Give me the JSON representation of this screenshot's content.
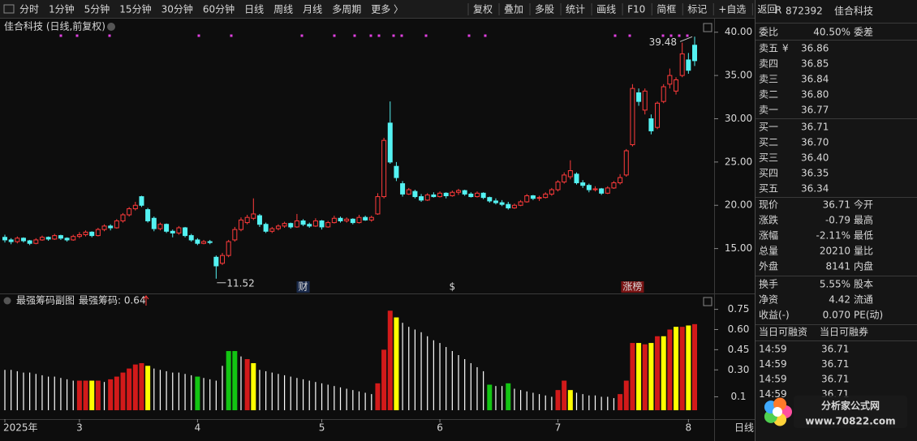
{
  "toolbar": {
    "left": [
      "分时",
      "1分钟",
      "5分钟",
      "15分钟",
      "30分钟",
      "60分钟",
      "日线",
      "周线",
      "月线",
      "多周期",
      "更多 〉"
    ],
    "active": "日线",
    "active_color": "#3fc6ff",
    "right": [
      "复权",
      "叠加",
      "多股",
      "统计",
      "画线",
      "F10",
      "简框",
      "标记",
      "+自选",
      "返回"
    ]
  },
  "chart_data": [
    {
      "type": "candlestick",
      "title": "佳合科技 (日线,前复权)",
      "categories": [
        "2025年",
        null,
        null,
        null,
        null,
        null,
        null,
        null,
        null,
        null,
        null,
        null,
        "3",
        null,
        null,
        null,
        null,
        null,
        null,
        null,
        null,
        null,
        null,
        null,
        null,
        null,
        null,
        null,
        null,
        null,
        null,
        "4",
        null,
        null,
        null,
        null,
        null,
        null,
        null,
        null,
        null,
        null,
        null,
        null,
        null,
        null,
        null,
        null,
        null,
        null,
        null,
        "5",
        null,
        null,
        null,
        null,
        null,
        null,
        null,
        null,
        null,
        null,
        null,
        null,
        null,
        null,
        null,
        null,
        null,
        null,
        "6",
        null,
        null,
        null,
        null,
        null,
        null,
        null,
        null,
        null,
        null,
        null,
        null,
        null,
        null,
        null,
        null,
        null,
        null,
        "7",
        null,
        null,
        null,
        null,
        null,
        null,
        null,
        null,
        null,
        null,
        null,
        null,
        null,
        null,
        null,
        null,
        null,
        null,
        null,
        null,
        "8",
        null
      ],
      "open": [
        16.3,
        16.0,
        15.8,
        16.2,
        15.9,
        15.6,
        16.0,
        16.3,
        16.1,
        16.5,
        16.2,
        16.0,
        16.4,
        16.6,
        16.9,
        16.5,
        17.2,
        17.6,
        17.4,
        18.2,
        18.9,
        19.6,
        21.0,
        19.5,
        18.5,
        17.3,
        17.8,
        17.0,
        16.8,
        17.4,
        16.5,
        16.0,
        15.6,
        15.8,
        14.0,
        13.3,
        14.2,
        16.0,
        17.2,
        18.0,
        18.5,
        18.8,
        17.8,
        17.0,
        17.3,
        17.6,
        17.9,
        17.5,
        18.2,
        17.8,
        17.6,
        18.2,
        17.5,
        18.0,
        18.5,
        18.2,
        18.4,
        18.0,
        18.6,
        18.3,
        19.0,
        21.0,
        29.5,
        24.5,
        22.5,
        21.3,
        21.6,
        21.0,
        20.6,
        21.2,
        21.0,
        21.4,
        21.1,
        21.5,
        21.7,
        21.3,
        21.0,
        21.4,
        20.9,
        20.5,
        20.3,
        20.1,
        19.7,
        20.0,
        20.4,
        21.1,
        20.8,
        20.9,
        21.3,
        21.8,
        22.7,
        23.3,
        23.6,
        22.6,
        22.3,
        21.8,
        21.9,
        21.4,
        22.0,
        22.6,
        23.5,
        27.0,
        33.0,
        31.0,
        30.0,
        29.0,
        32.0,
        34.0,
        33.2,
        35.0,
        36.8,
        38.5
      ],
      "high": [
        16.6,
        16.2,
        16.4,
        16.3,
        16.0,
        16.2,
        16.5,
        16.4,
        16.7,
        16.6,
        16.3,
        16.6,
        16.9,
        17.1,
        17.0,
        17.4,
        17.8,
        17.8,
        18.4,
        19.1,
        19.8,
        20.4,
        21.1,
        19.7,
        18.7,
        18.0,
        17.9,
        17.2,
        17.6,
        17.5,
        16.7,
        16.2,
        16.0,
        16.0,
        14.2,
        14.5,
        16.0,
        17.5,
        18.6,
        18.9,
        20.8,
        19.0,
        18.0,
        17.5,
        17.8,
        18.1,
        18.0,
        19.0,
        18.4,
        18.0,
        18.5,
        18.3,
        18.2,
        18.8,
        18.7,
        18.6,
        18.5,
        18.9,
        18.8,
        18.8,
        21.4,
        27.8,
        32.0,
        25.0,
        22.8,
        22.0,
        21.8,
        21.3,
        21.4,
        21.5,
        21.6,
        21.5,
        21.7,
        21.9,
        21.8,
        21.5,
        21.6,
        21.5,
        21.0,
        20.8,
        20.6,
        20.4,
        20.2,
        20.6,
        21.3,
        21.2,
        21.1,
        21.5,
        22.0,
        22.9,
        23.8,
        25.2,
        23.8,
        22.9,
        22.5,
        22.2,
        22.0,
        22.2,
        22.8,
        23.6,
        26.5,
        34.0,
        33.5,
        33.5,
        30.5,
        32.0,
        34.0,
        35.8,
        34.8,
        38.8,
        37.6,
        39.48
      ],
      "low": [
        15.7,
        15.5,
        15.6,
        15.7,
        15.4,
        15.5,
        15.9,
        15.9,
        16.0,
        16.0,
        15.8,
        15.9,
        16.2,
        16.4,
        16.3,
        16.4,
        17.0,
        17.1,
        17.3,
        18.0,
        18.7,
        19.4,
        19.8,
        18.0,
        17.0,
        17.1,
        16.8,
        16.3,
        16.6,
        16.3,
        15.8,
        15.4,
        15.5,
        15.5,
        11.52,
        13.1,
        14.0,
        15.8,
        17.0,
        17.8,
        18.3,
        17.5,
        16.8,
        16.8,
        17.1,
        17.4,
        17.3,
        17.4,
        17.6,
        17.4,
        17.5,
        17.2,
        17.4,
        17.9,
        18.0,
        18.0,
        17.8,
        17.9,
        18.2,
        18.1,
        18.9,
        20.8,
        24.8,
        22.8,
        21.0,
        21.2,
        20.8,
        20.4,
        20.5,
        20.9,
        20.9,
        20.8,
        21.0,
        21.2,
        21.1,
        20.9,
        20.9,
        20.7,
        20.3,
        20.1,
        19.9,
        19.5,
        19.6,
        19.9,
        20.3,
        20.6,
        20.5,
        20.8,
        21.1,
        21.6,
        22.5,
        23.0,
        22.4,
        22.0,
        21.5,
        21.6,
        21.2,
        21.3,
        21.9,
        22.4,
        23.3,
        26.8,
        31.5,
        30.5,
        28.2,
        28.8,
        31.8,
        33.5,
        32.8,
        34.8,
        35.2,
        36.1
      ],
      "close": [
        16.0,
        15.8,
        16.2,
        15.9,
        15.6,
        16.0,
        16.3,
        16.1,
        16.5,
        16.2,
        16.0,
        16.4,
        16.6,
        16.9,
        16.5,
        17.2,
        17.6,
        17.4,
        18.2,
        18.9,
        19.6,
        20.0,
        20.0,
        18.2,
        17.3,
        17.8,
        17.0,
        16.8,
        17.4,
        16.5,
        16.0,
        15.6,
        15.8,
        15.7,
        13.0,
        14.2,
        15.8,
        17.2,
        18.3,
        18.6,
        19.0,
        17.8,
        17.0,
        17.3,
        17.6,
        17.9,
        17.5,
        18.2,
        17.8,
        17.6,
        18.2,
        17.5,
        18.0,
        18.5,
        18.2,
        18.4,
        18.0,
        18.6,
        18.3,
        18.6,
        21.0,
        27.5,
        25.0,
        23.2,
        21.3,
        21.8,
        21.0,
        20.6,
        21.2,
        21.0,
        21.4,
        21.1,
        21.5,
        21.7,
        21.3,
        21.0,
        21.4,
        20.9,
        20.5,
        20.3,
        20.1,
        19.7,
        20.0,
        20.4,
        21.1,
        20.8,
        20.9,
        21.3,
        21.8,
        22.7,
        23.5,
        24.0,
        22.6,
        22.3,
        21.8,
        21.9,
        21.4,
        22.0,
        22.6,
        23.2,
        26.3,
        33.5,
        32.0,
        33.2,
        28.6,
        31.8,
        33.7,
        35.0,
        34.5,
        37.5,
        35.6,
        36.71
      ],
      "up_color": "#ff3b3b",
      "down_color": "#54f2f2",
      "ylim": [
        10,
        41.1
      ],
      "yticks": [
        {
          "value": 15,
          "label": "15.00"
        },
        {
          "value": 20,
          "label": "20.00"
        },
        {
          "value": 25,
          "label": "25.00"
        },
        {
          "value": 30,
          "label": "30.00"
        },
        {
          "value": 35,
          "label": "35.00"
        },
        {
          "value": 40,
          "label": "40.00"
        }
      ],
      "annotations": [
        {
          "text": "39.48"
        },
        {
          "text": "11.52"
        }
      ],
      "events": [
        {
          "label": "财",
          "color": "#6fb6ff"
        },
        {
          "label": "$",
          "color": "#ff3b3b"
        },
        {
          "label": "涨榜",
          "color": "#ffd0d0"
        }
      ],
      "period": "日线"
    },
    {
      "type": "bar",
      "title": "最强筹码副图",
      "legend": "最强筹码: 0.64",
      "values": [
        0.3,
        0.3,
        0.29,
        0.28,
        0.28,
        0.27,
        0.26,
        0.25,
        0.25,
        0.24,
        0.23,
        0.22,
        0.22,
        0.22,
        0.22,
        0.22,
        0.21,
        0.23,
        0.25,
        0.28,
        0.31,
        0.34,
        0.35,
        0.33,
        0.31,
        0.3,
        0.29,
        0.28,
        0.28,
        0.27,
        0.26,
        0.25,
        0.24,
        0.23,
        0.22,
        0.33,
        0.44,
        0.44,
        0.4,
        0.38,
        0.35,
        0.3,
        0.29,
        0.28,
        0.27,
        0.26,
        0.25,
        0.24,
        0.23,
        0.22,
        0.21,
        0.2,
        0.19,
        0.18,
        0.17,
        0.16,
        0.15,
        0.14,
        0.13,
        0.12,
        0.2,
        0.45,
        0.74,
        0.69,
        0.65,
        0.62,
        0.6,
        0.58,
        0.55,
        0.52,
        0.5,
        0.47,
        0.44,
        0.41,
        0.38,
        0.35,
        0.32,
        0.29,
        0.19,
        0.18,
        0.18,
        0.2,
        0.16,
        0.15,
        0.14,
        0.13,
        0.12,
        0.11,
        0.1,
        0.15,
        0.22,
        0.15,
        0.13,
        0.12,
        0.11,
        0.11,
        0.1,
        0.1,
        0.09,
        0.12,
        0.22,
        0.5,
        0.5,
        0.49,
        0.5,
        0.55,
        0.55,
        0.6,
        0.62,
        0.62,
        0.63,
        0.64
      ],
      "colors": [
        "#fff",
        "#fff",
        "#fff",
        "#fff",
        "#fff",
        "#fff",
        "#fff",
        "#fff",
        "#fff",
        "#fff",
        "#fff",
        "#fff",
        "#d21a1a",
        "#d21a1a",
        "#ffff00",
        "#d21a1a",
        "#fff",
        "#d21a1a",
        "#d21a1a",
        "#d21a1a",
        "#d21a1a",
        "#d21a1a",
        "#d21a1a",
        "#ffff00",
        "#fff",
        "#fff",
        "#fff",
        "#fff",
        "#fff",
        "#fff",
        "#fff",
        "#13c513",
        "#fff",
        "#fff",
        "#fff",
        "#fff",
        "#13c513",
        "#13c513",
        "#fff",
        "#d21a1a",
        "#ffff00",
        "#fff",
        "#fff",
        "#fff",
        "#fff",
        "#fff",
        "#fff",
        "#fff",
        "#fff",
        "#fff",
        "#fff",
        "#fff",
        "#fff",
        "#fff",
        "#fff",
        "#fff",
        "#fff",
        "#fff",
        "#fff",
        "#fff",
        "#d21a1a",
        "#d21a1a",
        "#d21a1a",
        "#ffff00",
        "#fff",
        "#fff",
        "#fff",
        "#fff",
        "#fff",
        "#fff",
        "#fff",
        "#fff",
        "#fff",
        "#fff",
        "#fff",
        "#fff",
        "#fff",
        "#fff",
        "#13c513",
        "#fff",
        "#fff",
        "#13c513",
        "#fff",
        "#fff",
        "#fff",
        "#fff",
        "#fff",
        "#fff",
        "#fff",
        "#d21a1a",
        "#d21a1a",
        "#ffff00",
        "#fff",
        "#fff",
        "#fff",
        "#fff",
        "#fff",
        "#fff",
        "#fff",
        "#d21a1a",
        "#d21a1a",
        "#d21a1a",
        "#ffff00",
        "#d21a1a",
        "#ffff00",
        "#d21a1a",
        "#ffff00",
        "#d21a1a",
        "#ffff00",
        "#d21a1a",
        "#ffff00",
        "#d21a1a"
      ],
      "ylim": [
        -0.06,
        0.85
      ],
      "yticks": [
        0.1,
        {
          "value": 0.3,
          "label": "0.30"
        },
        {
          "value": 0.45,
          "label": "0.45"
        },
        {
          "value": 0.6,
          "label": "0.60"
        },
        {
          "value": 0.75,
          "label": "0.75"
        }
      ]
    }
  ],
  "quote": {
    "flag": "R",
    "code": "872392",
    "name": "佳合科技",
    "ratio": {
      "label": "委比",
      "value": "40.50%",
      "label2": "委差",
      "color": "#ff4545"
    },
    "asks": [
      {
        "label": "卖五",
        "icon": "¥",
        "value": "36.86"
      },
      {
        "label": "卖四",
        "value": "36.85"
      },
      {
        "label": "卖三",
        "value": "36.84"
      },
      {
        "label": "卖二",
        "value": "36.80"
      },
      {
        "label": "卖一",
        "value": "36.77"
      }
    ],
    "bids": [
      {
        "label": "买一",
        "value": "36.71"
      },
      {
        "label": "买二",
        "value": "36.70"
      },
      {
        "label": "买三",
        "value": "36.40"
      },
      {
        "label": "买四",
        "value": "36.35"
      },
      {
        "label": "买五",
        "value": "36.34"
      }
    ],
    "book_color": "#3ed03e",
    "stats": [
      {
        "label": "现价",
        "value": "36.71",
        "label2": "今开",
        "color": "#3ed03e"
      },
      {
        "label": "涨跌",
        "value": "-0.79",
        "label2": "最高",
        "color": "#3ed03e"
      },
      {
        "label": "涨幅",
        "value": "-2.11%",
        "label2": "最低",
        "color": "#3ed03e"
      },
      {
        "label": "总量",
        "value": "20210",
        "label2": "量比",
        "color": "#ffc83a"
      },
      {
        "label": "外盘",
        "value": "8141",
        "label2": "内盘",
        "color": "#ff4545"
      }
    ],
    "stats2": [
      {
        "label": "换手",
        "value": "5.55%",
        "label2": "股本",
        "color": "#e0e0e0"
      },
      {
        "label": "净资",
        "value": "4.42",
        "label2": "流通",
        "color": "#e0e0e0"
      },
      {
        "label": "收益(-)",
        "value": "0.070",
        "label2": "PE(动)",
        "color": "#e0e0e0"
      }
    ],
    "margin": [
      "当日可融资",
      "当日可融券"
    ],
    "trades": [
      {
        "time": "14:59",
        "price": "36.71"
      },
      {
        "time": "14:59",
        "price": "36.71"
      },
      {
        "time": "14:59",
        "price": "36.71"
      },
      {
        "time": "14:59",
        "price": "36.71"
      }
    ],
    "trade_color": "#3ed03e"
  },
  "watermark": {
    "title": "分析家公式网",
    "url": "www.70822.com"
  }
}
